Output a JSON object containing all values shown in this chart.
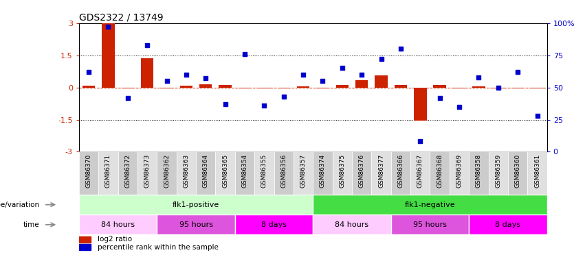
{
  "title": "GDS2322 / 13749",
  "samples": [
    "GSM86370",
    "GSM86371",
    "GSM86372",
    "GSM86373",
    "GSM86362",
    "GSM86363",
    "GSM86364",
    "GSM86365",
    "GSM86354",
    "GSM86355",
    "GSM86356",
    "GSM86357",
    "GSM86374",
    "GSM86375",
    "GSM86376",
    "GSM86377",
    "GSM86366",
    "GSM86367",
    "GSM86368",
    "GSM86369",
    "GSM86358",
    "GSM86359",
    "GSM86360",
    "GSM86361"
  ],
  "log2_ratio": [
    0.08,
    3.0,
    -0.05,
    1.35,
    -0.04,
    0.08,
    0.15,
    0.12,
    -0.03,
    -0.04,
    -0.05,
    0.06,
    -0.04,
    0.1,
    0.35,
    0.55,
    0.12,
    -1.55,
    0.1,
    -0.05,
    0.05,
    -0.04,
    -0.03,
    -0.05
  ],
  "percentile": [
    62,
    97,
    42,
    83,
    55,
    60,
    57,
    37,
    76,
    36,
    43,
    60,
    55,
    65,
    60,
    72,
    80,
    8,
    42,
    35,
    58,
    50,
    62,
    28
  ],
  "ylim": [
    -3,
    3
  ],
  "y2lim": [
    0,
    100
  ],
  "y_ticks": [
    -3,
    -1.5,
    0,
    1.5,
    3
  ],
  "y2_ticks": [
    0,
    25,
    50,
    75,
    100
  ],
  "hlines": [
    1.5,
    -1.5
  ],
  "bar_color": "#cc2200",
  "dot_color": "#0000cc",
  "zero_line_color": "#cc2200",
  "genotype_groups": [
    {
      "label": "flk1-positive",
      "start": 0,
      "end": 12,
      "color": "#ccffcc"
    },
    {
      "label": "flk1-negative",
      "start": 12,
      "end": 24,
      "color": "#44dd44"
    }
  ],
  "time_groups": [
    {
      "label": "84 hours",
      "start": 0,
      "end": 4,
      "color": "#ffccff"
    },
    {
      "label": "95 hours",
      "start": 4,
      "end": 8,
      "color": "#dd55dd"
    },
    {
      "label": "8 days",
      "start": 8,
      "end": 12,
      "color": "#ff00ff"
    },
    {
      "label": "84 hours",
      "start": 12,
      "end": 16,
      "color": "#ffccff"
    },
    {
      "label": "95 hours",
      "start": 16,
      "end": 20,
      "color": "#dd55dd"
    },
    {
      "label": "8 days",
      "start": 20,
      "end": 24,
      "color": "#ff00ff"
    }
  ],
  "genotype_label": "genotype/variation",
  "time_label": "time",
  "legend_items": [
    {
      "label": "log2 ratio",
      "color": "#cc2200"
    },
    {
      "label": "percentile rank within the sample",
      "color": "#0000cc"
    }
  ],
  "tick_bg_colors": [
    "#cccccc",
    "#e0e0e0"
  ]
}
